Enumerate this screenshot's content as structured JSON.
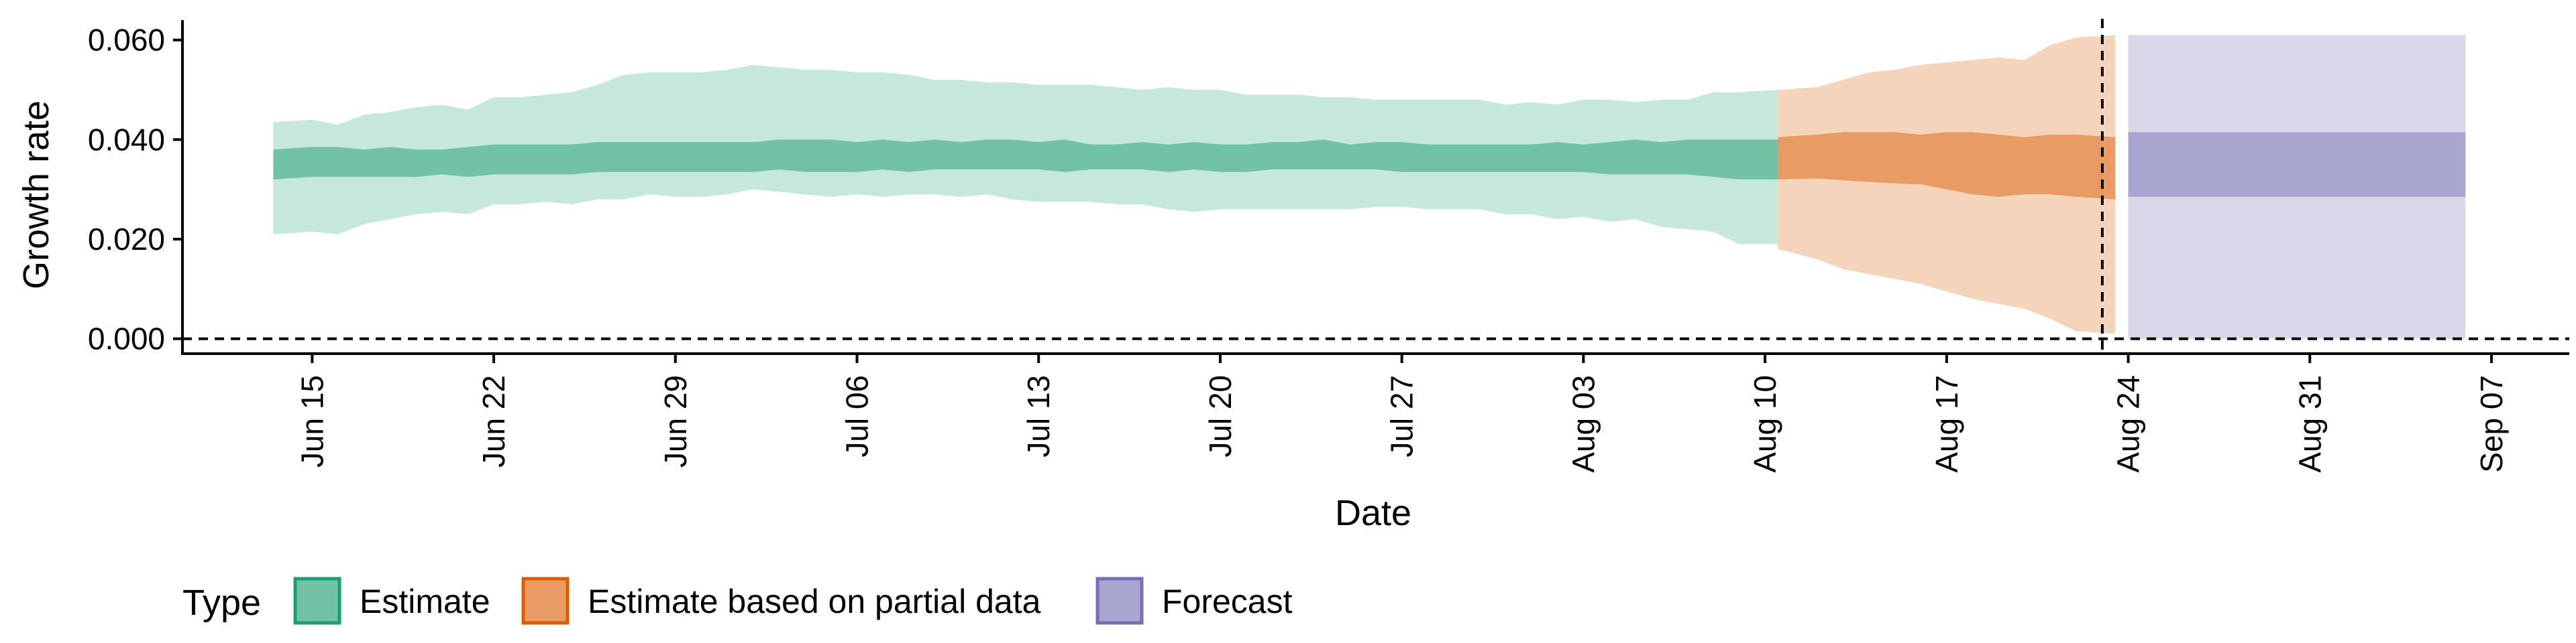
{
  "chart_data": {
    "type": "area",
    "xlabel": "Date",
    "ylabel": "Growth rate",
    "ylim": [
      -0.003,
      0.064
    ],
    "xlim": [
      "2020-06-10",
      "2020-09-10"
    ],
    "x_ticks": [
      {
        "date": "2020-06-15",
        "label": "Jun 15"
      },
      {
        "date": "2020-06-22",
        "label": "Jun 22"
      },
      {
        "date": "2020-06-29",
        "label": "Jun 29"
      },
      {
        "date": "2020-07-06",
        "label": "Jul 06"
      },
      {
        "date": "2020-07-13",
        "label": "Jul 13"
      },
      {
        "date": "2020-07-20",
        "label": "Jul 20"
      },
      {
        "date": "2020-07-27",
        "label": "Jul 27"
      },
      {
        "date": "2020-08-03",
        "label": "Aug 03"
      },
      {
        "date": "2020-08-10",
        "label": "Aug 10"
      },
      {
        "date": "2020-08-17",
        "label": "Aug 17"
      },
      {
        "date": "2020-08-24",
        "label": "Aug 24"
      },
      {
        "date": "2020-08-31",
        "label": "Aug 31"
      },
      {
        "date": "2020-09-07",
        "label": "Sep 07"
      }
    ],
    "y_ticks": [
      {
        "value": 0.0,
        "label": "0.000"
      },
      {
        "value": 0.02,
        "label": "0.020"
      },
      {
        "value": 0.04,
        "label": "0.040"
      },
      {
        "value": 0.06,
        "label": "0.060"
      }
    ],
    "hline": 0.0,
    "vline": "2020-08-23",
    "grid": false,
    "legend": {
      "title": "Type",
      "position": "bottom-left",
      "items": [
        {
          "label": "Estimate",
          "fill": "#72c2a6",
          "border": "#1b9e77"
        },
        {
          "label": "Estimate based on partial data",
          "fill": "#e89b63",
          "border": "#d95f02"
        },
        {
          "label": "Forecast",
          "fill": "#a8a6d0",
          "border": "#7570b3"
        }
      ]
    },
    "series": [
      {
        "name": "Estimate",
        "color": "#72c2a6",
        "outer_color": "#c5e7dc",
        "x": [
          "2020-06-14",
          "2020-06-15",
          "2020-06-16",
          "2020-06-17",
          "2020-06-18",
          "2020-06-19",
          "2020-06-20",
          "2020-06-21",
          "2020-06-22",
          "2020-06-23",
          "2020-06-24",
          "2020-06-25",
          "2020-06-26",
          "2020-06-27",
          "2020-06-28",
          "2020-06-29",
          "2020-06-30",
          "2020-07-01",
          "2020-07-02",
          "2020-07-03",
          "2020-07-04",
          "2020-07-05",
          "2020-07-06",
          "2020-07-07",
          "2020-07-08",
          "2020-07-09",
          "2020-07-10",
          "2020-07-11",
          "2020-07-12",
          "2020-07-13",
          "2020-07-14",
          "2020-07-15",
          "2020-07-16",
          "2020-07-17",
          "2020-07-18",
          "2020-07-19",
          "2020-07-20",
          "2020-07-21",
          "2020-07-22",
          "2020-07-23",
          "2020-07-24",
          "2020-07-25",
          "2020-07-26",
          "2020-07-27",
          "2020-07-28",
          "2020-07-29",
          "2020-07-30",
          "2020-07-31",
          "2020-08-01",
          "2020-08-02",
          "2020-08-03",
          "2020-08-04",
          "2020-08-05",
          "2020-08-06",
          "2020-08-07",
          "2020-08-08",
          "2020-08-09",
          "2020-08-10"
        ],
        "lower_outer": [
          0.021,
          0.0215,
          0.021,
          0.023,
          0.024,
          0.025,
          0.0255,
          0.025,
          0.027,
          0.027,
          0.0275,
          0.027,
          0.028,
          0.028,
          0.029,
          0.0285,
          0.0285,
          0.029,
          0.03,
          0.0295,
          0.029,
          0.0285,
          0.029,
          0.0285,
          0.029,
          0.029,
          0.0285,
          0.029,
          0.028,
          0.0275,
          0.0275,
          0.0275,
          0.027,
          0.027,
          0.026,
          0.0255,
          0.026,
          0.026,
          0.026,
          0.026,
          0.026,
          0.026,
          0.0265,
          0.0265,
          0.026,
          0.026,
          0.026,
          0.025,
          0.025,
          0.024,
          0.0245,
          0.0235,
          0.024,
          0.0225,
          0.022,
          0.0215,
          0.019,
          0.019
        ],
        "lower_inner": [
          0.032,
          0.0325,
          0.0325,
          0.0325,
          0.0325,
          0.0325,
          0.033,
          0.0325,
          0.033,
          0.033,
          0.033,
          0.033,
          0.0335,
          0.0335,
          0.0335,
          0.0335,
          0.0335,
          0.0335,
          0.0335,
          0.034,
          0.0335,
          0.0335,
          0.0335,
          0.034,
          0.0335,
          0.034,
          0.034,
          0.034,
          0.034,
          0.034,
          0.0335,
          0.034,
          0.034,
          0.034,
          0.0335,
          0.034,
          0.0335,
          0.0335,
          0.034,
          0.034,
          0.034,
          0.034,
          0.034,
          0.0335,
          0.0335,
          0.0335,
          0.0335,
          0.0335,
          0.0335,
          0.0335,
          0.0335,
          0.033,
          0.033,
          0.033,
          0.033,
          0.0325,
          0.032,
          0.032
        ],
        "upper_inner": [
          0.038,
          0.0385,
          0.0385,
          0.038,
          0.0385,
          0.038,
          0.038,
          0.0385,
          0.039,
          0.039,
          0.039,
          0.039,
          0.0395,
          0.0395,
          0.0395,
          0.0395,
          0.0395,
          0.0395,
          0.0395,
          0.04,
          0.04,
          0.04,
          0.0395,
          0.04,
          0.0395,
          0.04,
          0.0395,
          0.04,
          0.04,
          0.0395,
          0.04,
          0.039,
          0.039,
          0.0395,
          0.039,
          0.0395,
          0.039,
          0.039,
          0.0395,
          0.0395,
          0.04,
          0.039,
          0.0395,
          0.0395,
          0.039,
          0.039,
          0.039,
          0.039,
          0.039,
          0.0395,
          0.039,
          0.0395,
          0.04,
          0.0395,
          0.04,
          0.04,
          0.04,
          0.04
        ],
        "upper_outer": [
          0.0435,
          0.044,
          0.043,
          0.045,
          0.0455,
          0.0465,
          0.047,
          0.046,
          0.0485,
          0.0485,
          0.049,
          0.0495,
          0.051,
          0.053,
          0.0535,
          0.0535,
          0.0535,
          0.054,
          0.055,
          0.0545,
          0.054,
          0.054,
          0.0535,
          0.0535,
          0.053,
          0.052,
          0.052,
          0.0515,
          0.0515,
          0.051,
          0.051,
          0.051,
          0.0505,
          0.05,
          0.0505,
          0.05,
          0.05,
          0.049,
          0.049,
          0.049,
          0.0485,
          0.0485,
          0.048,
          0.048,
          0.048,
          0.048,
          0.048,
          0.047,
          0.0475,
          0.047,
          0.048,
          0.048,
          0.0475,
          0.048,
          0.048,
          0.0495,
          0.0495,
          0.05
        ]
      },
      {
        "name": "Estimate based on partial data",
        "color": "#e89b63",
        "outer_color": "#f5d4bc",
        "x": [
          "2020-08-11",
          "2020-08-12",
          "2020-08-13",
          "2020-08-14",
          "2020-08-15",
          "2020-08-16",
          "2020-08-17",
          "2020-08-18",
          "2020-08-19",
          "2020-08-20",
          "2020-08-21",
          "2020-08-22",
          "2020-08-23"
        ],
        "lower_outer": [
          0.018,
          0.016,
          0.014,
          0.013,
          0.012,
          0.011,
          0.0095,
          0.008,
          0.007,
          0.006,
          0.004,
          0.0015,
          0.001
        ],
        "lower_inner": [
          0.032,
          0.0322,
          0.0318,
          0.0315,
          0.0312,
          0.031,
          0.03,
          0.029,
          0.0285,
          0.029,
          0.029,
          0.0285,
          0.028
        ],
        "upper_inner": [
          0.0405,
          0.041,
          0.0415,
          0.0415,
          0.0415,
          0.041,
          0.0415,
          0.0415,
          0.041,
          0.0405,
          0.041,
          0.041,
          0.0405
        ],
        "upper_outer": [
          0.05,
          0.0505,
          0.052,
          0.0535,
          0.054,
          0.055,
          0.0555,
          0.056,
          0.0565,
          0.056,
          0.059,
          0.0605,
          0.061
        ]
      },
      {
        "name": "Forecast",
        "color": "#a8a6d0",
        "outer_color": "#d9d8ea",
        "x": [
          "2020-08-24",
          "2020-09-06"
        ],
        "lower_outer": [
          0.0,
          0.0
        ],
        "lower_inner": [
          0.0285,
          0.0285
        ],
        "upper_inner": [
          0.0415,
          0.0415
        ],
        "upper_outer": [
          0.061,
          0.061
        ]
      }
    ]
  }
}
